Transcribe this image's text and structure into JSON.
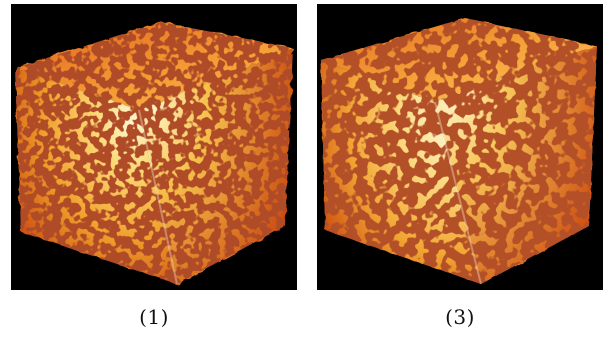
{
  "figure": {
    "panels": [
      {
        "caption": "(1)",
        "subject": "porous-cube-volume-render",
        "pore_density": "high"
      },
      {
        "caption": "(3)",
        "subject": "porous-cube-volume-render",
        "pore_density": "low"
      }
    ]
  },
  "colors": {
    "background": "#000000",
    "highlight": "#fff6d0",
    "mid": "#f3b53a",
    "shadow": "#b92f08",
    "pore": "#6e1204"
  }
}
